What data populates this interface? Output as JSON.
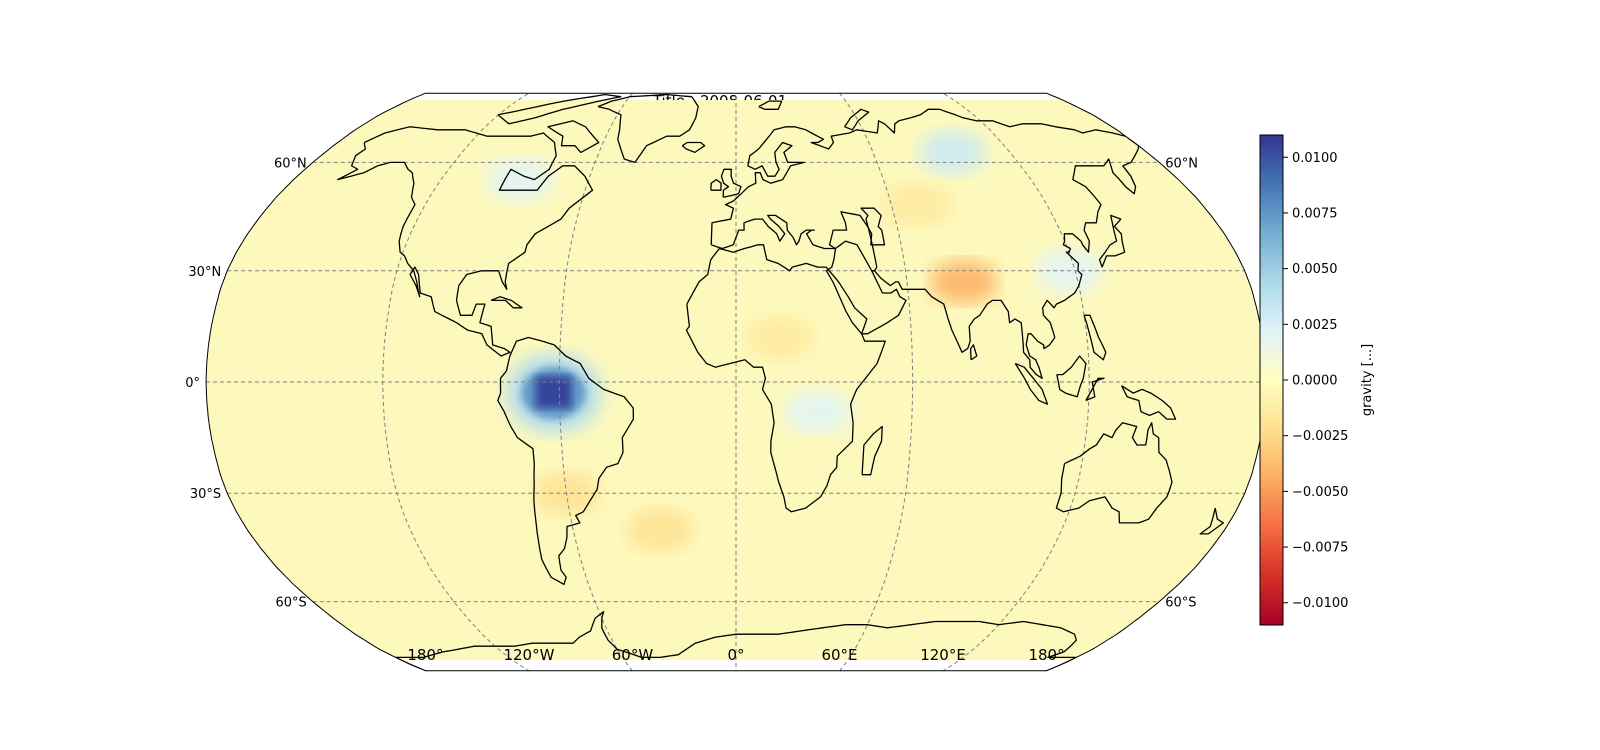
{
  "title": "Title - 2008-06-01",
  "projection": "robinson",
  "lat_labels_left": [
    "60°N",
    "30°N",
    "0°",
    "30°S",
    "60°S"
  ],
  "lat_labels_right": [
    "60°N",
    "60°S"
  ],
  "lon_labels": [
    "180°",
    "120°W",
    "60°W",
    "0°",
    "60°E",
    "120°E",
    "180°"
  ],
  "gridlines": true,
  "colormap": "RdYlBu",
  "colorbar": {
    "label": "gravity [...]",
    "min": -0.011,
    "max": 0.011,
    "ticks": [
      "0.0100",
      "0.0075",
      "0.0050",
      "0.0025",
      "0.0000",
      "−0.0025",
      "−0.0050",
      "−0.0075",
      "−0.0100"
    ],
    "placement": "right"
  },
  "anomalies": [
    {
      "region": "Amazon basin",
      "lon": -62,
      "lat": -3,
      "value": 0.0105
    },
    {
      "region": "Siberia",
      "lon": 95,
      "lat": 63,
      "value": 0.003
    },
    {
      "region": "Hudson Bay",
      "lon": -88,
      "lat": 55,
      "value": 0.002
    },
    {
      "region": "Central Africa",
      "lon": 28,
      "lat": -8,
      "value": 0.002
    },
    {
      "region": "Eastern China",
      "lon": 118,
      "lat": 30,
      "value": 0.002
    },
    {
      "region": "North India",
      "lon": 80,
      "lat": 27,
      "value": -0.004
    },
    {
      "region": "Central Asia",
      "lon": 70,
      "lat": 48,
      "value": -0.0015
    },
    {
      "region": "Sahel",
      "lon": 15,
      "lat": 12,
      "value": -0.0015
    },
    {
      "region": "Southern Atlantic",
      "lon": -28,
      "lat": -40,
      "value": -0.002
    },
    {
      "region": "Southern South America",
      "lon": -60,
      "lat": -30,
      "value": -0.002
    }
  ]
}
